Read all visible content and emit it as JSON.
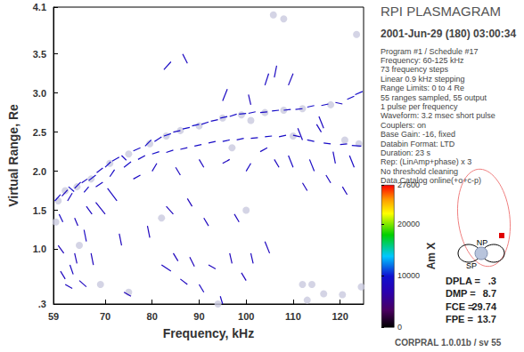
{
  "chart_data": {
    "type": "scatter",
    "title": "RPI PLASMAGRAM",
    "subtitle": "2001-Jun-29 (180) 03:00:34",
    "x_label": "Frequency, kHz",
    "y_label": "Virtual Range, Re",
    "xlim": [
      59,
      125
    ],
    "xticks": [
      59,
      70,
      80,
      90,
      100,
      110,
      120
    ],
    "ylim": [
      0.3,
      4.1
    ],
    "yticks": [
      {
        "value": 0.3,
        "label": ".3"
      },
      {
        "value": 1,
        "label": "1.0"
      },
      1.5,
      {
        "value": 2,
        "label": "2.0"
      },
      2.5,
      {
        "value": 3,
        "label": "3.0"
      },
      3.5,
      4.1
    ],
    "grid": false,
    "marker": "circle",
    "echoes": [
      [
        59.3,
        1.62,
        60.5,
        1.7,
        9000
      ],
      [
        60.8,
        1.68,
        62.0,
        1.76,
        8500
      ],
      [
        62.2,
        1.8,
        63.4,
        1.74,
        9500
      ],
      [
        63.5,
        1.78,
        64.8,
        1.86,
        9000
      ],
      [
        65.0,
        1.85,
        66.2,
        1.9,
        8800
      ],
      [
        66.5,
        1.88,
        68.0,
        1.95,
        9200
      ],
      [
        68.2,
        1.98,
        69.5,
        2.04,
        8700
      ],
      [
        70.0,
        2.05,
        71.2,
        2.12,
        9400
      ],
      [
        71.5,
        2.13,
        73.0,
        2.18,
        9000
      ],
      [
        73.5,
        2.2,
        74.5,
        2.14,
        8600
      ],
      [
        76.0,
        2.26,
        77.5,
        2.3,
        9100
      ],
      [
        78.5,
        2.32,
        79.8,
        2.4,
        9300
      ],
      [
        80.5,
        2.38,
        82.0,
        2.44,
        9000
      ],
      [
        82.5,
        2.45,
        84.0,
        2.48,
        9500
      ],
      [
        84.5,
        2.5,
        86.0,
        2.52,
        8900
      ],
      [
        86.5,
        2.54,
        88.0,
        2.56,
        9200
      ],
      [
        88.5,
        2.58,
        90.0,
        2.6,
        9600
      ],
      [
        90.5,
        2.6,
        92.0,
        2.63,
        9000
      ],
      [
        92.5,
        2.64,
        94.0,
        2.66,
        8800
      ],
      [
        94.5,
        2.68,
        96.0,
        2.7,
        9400
      ],
      [
        96.5,
        2.7,
        98.0,
        2.73,
        9100
      ],
      [
        98.5,
        2.73,
        100.0,
        2.74,
        9300
      ],
      [
        100.5,
        2.74,
        102.0,
        2.76,
        9000
      ],
      [
        103.0,
        2.75,
        104.5,
        2.76,
        8700
      ],
      [
        105.5,
        2.77,
        107.0,
        2.78,
        9200
      ],
      [
        108.0,
        2.78,
        109.5,
        2.79,
        9000
      ],
      [
        110.5,
        2.79,
        112.0,
        2.8,
        8800
      ],
      [
        113.0,
        2.82,
        114.5,
        2.84,
        9300
      ],
      [
        116.0,
        2.84,
        117.5,
        2.86,
        9000
      ],
      [
        119.0,
        2.88,
        120.5,
        2.86,
        8600
      ],
      [
        121.5,
        2.92,
        123.0,
        2.96,
        9100
      ],
      [
        123.2,
        2.98,
        124.8,
        3.02,
        9400
      ],
      [
        62.0,
        1.62,
        63.0,
        1.72,
        8500
      ],
      [
        65.5,
        1.73,
        66.5,
        1.8,
        9000
      ],
      [
        68.0,
        1.8,
        69.5,
        1.86,
        8700
      ],
      [
        71.0,
        1.93,
        72.0,
        2.02,
        8900
      ],
      [
        74.0,
        2.05,
        75.5,
        2.12,
        9200
      ],
      [
        77.0,
        2.15,
        78.5,
        2.2,
        8800
      ],
      [
        80.0,
        2.22,
        81.5,
        2.25,
        9300
      ],
      [
        83.0,
        2.24,
        84.5,
        2.27,
        9000
      ],
      [
        86.0,
        2.28,
        87.5,
        2.3,
        8700
      ],
      [
        89.0,
        2.32,
        90.5,
        2.34,
        9100
      ],
      [
        92.0,
        2.36,
        93.5,
        2.38,
        8900
      ],
      [
        95.0,
        2.38,
        96.5,
        2.4,
        9200
      ],
      [
        98.0,
        2.4,
        99.5,
        2.42,
        9000
      ],
      [
        101.0,
        2.42,
        102.5,
        2.43,
        8800
      ],
      [
        104.0,
        2.44,
        105.5,
        2.45,
        9300
      ],
      [
        107.0,
        2.44,
        108.5,
        2.46,
        9000
      ],
      [
        110.0,
        2.46,
        111.5,
        2.44,
        8700
      ],
      [
        113.0,
        2.4,
        114.5,
        2.38,
        9100
      ],
      [
        116.5,
        2.36,
        118.0,
        2.35,
        9000
      ],
      [
        120.0,
        2.34,
        121.5,
        2.35,
        8800
      ],
      [
        122.5,
        2.33,
        124.5,
        2.32,
        9200
      ],
      [
        60.0,
        1.05,
        61.2,
        0.95,
        8000
      ],
      [
        60.5,
        0.72,
        61.5,
        0.62,
        8200
      ],
      [
        61.5,
        0.55,
        63.0,
        0.5,
        8400
      ],
      [
        62.5,
        0.8,
        63.2,
        0.68,
        8600
      ],
      [
        63.5,
        0.95,
        64.0,
        0.82,
        8000
      ],
      [
        64.5,
        0.6,
        66.0,
        0.52,
        8300
      ],
      [
        65.5,
        1.25,
        66.0,
        1.1,
        8700
      ],
      [
        67.0,
        0.95,
        67.5,
        0.8,
        8100
      ],
      [
        60.2,
        1.45,
        61.0,
        1.35,
        8800
      ],
      [
        63.5,
        1.4,
        64.2,
        1.3,
        8200
      ],
      [
        66.0,
        1.55,
        67.2,
        1.45,
        8500
      ],
      [
        68.0,
        1.6,
        70.0,
        1.45,
        8300
      ],
      [
        70.5,
        1.78,
        72.5,
        1.62,
        8600
      ],
      [
        73.0,
        1.2,
        73.5,
        1.05,
        8200
      ],
      [
        74.0,
        0.45,
        75.5,
        0.4,
        7800
      ],
      [
        82.0,
        0.8,
        84.0,
        0.72,
        8400
      ],
      [
        84.5,
        0.95,
        85.5,
        0.85,
        8100
      ],
      [
        86.0,
        0.62,
        87.5,
        0.55,
        8300
      ],
      [
        88.0,
        0.9,
        89.0,
        0.78,
        8000
      ],
      [
        90.0,
        0.55,
        91.0,
        0.45,
        8500
      ],
      [
        92.0,
        0.8,
        93.5,
        0.75,
        8200
      ],
      [
        94.5,
        0.4,
        95.0,
        0.3,
        8600
      ],
      [
        96.5,
        0.95,
        97.0,
        0.82,
        8000
      ],
      [
        97.5,
        1.45,
        98.5,
        1.35,
        8300
      ],
      [
        99.0,
        0.7,
        100.0,
        0.6,
        8100
      ],
      [
        101.0,
        0.95,
        101.5,
        0.82,
        8400
      ],
      [
        83.0,
        1.55,
        84.5,
        1.45,
        8200
      ],
      [
        87.5,
        1.65,
        88.5,
        1.55,
        8000
      ],
      [
        91.0,
        1.4,
        92.0,
        1.3,
        8300
      ],
      [
        79.0,
        1.3,
        79.5,
        1.15,
        8100
      ],
      [
        104.0,
        1.1,
        105.0,
        0.95,
        8200
      ],
      [
        82.5,
        3.3,
        84.0,
        3.4,
        8900
      ],
      [
        86.5,
        3.5,
        87.5,
        3.38,
        8500
      ],
      [
        104.0,
        3.1,
        104.8,
        3.25,
        8800
      ],
      [
        106.0,
        3.2,
        106.5,
        3.35,
        8600
      ],
      [
        109.0,
        3.1,
        110.0,
        3.25,
        8400
      ],
      [
        95.0,
        2.9,
        96.0,
        3.05,
        8700
      ],
      [
        100.5,
        2.98,
        101.0,
        2.85,
        8200
      ],
      [
        109.0,
        2.2,
        110.0,
        2.05,
        8800
      ],
      [
        111.0,
        2.55,
        112.0,
        2.4,
        8500
      ],
      [
        113.5,
        2.15,
        114.5,
        2.0,
        8900
      ],
      [
        115.0,
        2.6,
        116.0,
        2.5,
        8600
      ],
      [
        117.0,
        1.95,
        118.0,
        1.85,
        8400
      ],
      [
        118.5,
        2.25,
        119.0,
        2.1,
        8700
      ],
      [
        120.5,
        1.8,
        121.5,
        1.7,
        8300
      ],
      [
        122.0,
        2.2,
        123.0,
        2.05,
        8900
      ],
      [
        115.5,
        2.7,
        116.5,
        2.55,
        8500
      ],
      [
        112.0,
        1.85,
        113.0,
        1.75,
        8200
      ],
      [
        76.0,
        1.9,
        77.5,
        1.95,
        8700
      ],
      [
        80.0,
        2.0,
        81.0,
        2.1,
        8600
      ],
      [
        85.0,
        2.05,
        86.0,
        1.95,
        8400
      ],
      [
        90.0,
        2.15,
        91.0,
        2.05,
        8500
      ],
      [
        95.0,
        2.1,
        96.5,
        2.15,
        8300
      ],
      [
        100.0,
        2.0,
        101.0,
        2.1,
        8800
      ],
      [
        103.0,
        2.25,
        104.5,
        2.3,
        8600
      ],
      [
        106.0,
        2.15,
        107.0,
        2.05,
        8400
      ]
    ],
    "points": [
      [
        60.0,
        1.62
      ],
      [
        61.5,
        1.75
      ],
      [
        64.0,
        1.8
      ],
      [
        67.0,
        1.9
      ],
      [
        71.0,
        2.1
      ],
      [
        75.0,
        2.22
      ],
      [
        79.5,
        2.35
      ],
      [
        83.0,
        2.45
      ],
      [
        86.0,
        2.52
      ],
      [
        90.0,
        2.58
      ],
      [
        95.0,
        2.68
      ],
      [
        99.0,
        2.72
      ],
      [
        101.0,
        2.65
      ],
      [
        104.0,
        2.75
      ],
      [
        108.0,
        2.78
      ],
      [
        112.0,
        2.8
      ],
      [
        118.0,
        2.85
      ],
      [
        105.8,
        4.0
      ],
      [
        108.0,
        3.95
      ],
      [
        123.5,
        3.75
      ],
      [
        100.0,
        1.5
      ],
      [
        112.0,
        0.55
      ],
      [
        114.0,
        0.55
      ],
      [
        113.0,
        0.35
      ],
      [
        116.5,
        0.43
      ],
      [
        120.5,
        0.42
      ],
      [
        124.5,
        0.52
      ],
      [
        94.0,
        0.3
      ],
      [
        69.0,
        0.55
      ],
      [
        82.0,
        1.4
      ],
      [
        97.0,
        2.3
      ],
      [
        110.0,
        2.45
      ],
      [
        121.0,
        2.4
      ],
      [
        64.5,
        1.05
      ],
      [
        59.5,
        1.35
      ],
      [
        75.0,
        0.45
      ],
      [
        124.0,
        2.35
      ]
    ],
    "colorbar": {
      "label": "Am X",
      "range": [
        0,
        27600
      ],
      "ticks": [
        0,
        10000,
        20000,
        27600
      ]
    },
    "annotations": [
      "Program #1 / Schedule #17",
      "Frequency: 60-125 kHz",
      "73 frequency steps",
      "Linear 0.9 kHz stepping",
      "Range Limits: 0 to 4 Re",
      "55 ranges sampled, 55 output",
      "1 pulse per frequency",
      "Waveform: 3.2 msec short pulse",
      "Couplers: on",
      "Base Gain: -16, fixed",
      "Databin Format: LTD",
      "Duration: 23 s",
      "Rep: (LinAmp+phase) x 3",
      "No threshold cleaning",
      "Data Catalog online(+o+c-p)"
    ],
    "params": [
      {
        "name": "DPLA =",
        "value": ".3"
      },
      {
        "name": "DMP =",
        "value": "8.7"
      },
      {
        "name": "FCE =",
        "value": "29.74"
      },
      {
        "name": "FPE =",
        "value": "13.7"
      }
    ],
    "orbit_labels": [
      "NP",
      "SP"
    ],
    "footer": "CORPRAL 1.0.01b / sv 55"
  }
}
